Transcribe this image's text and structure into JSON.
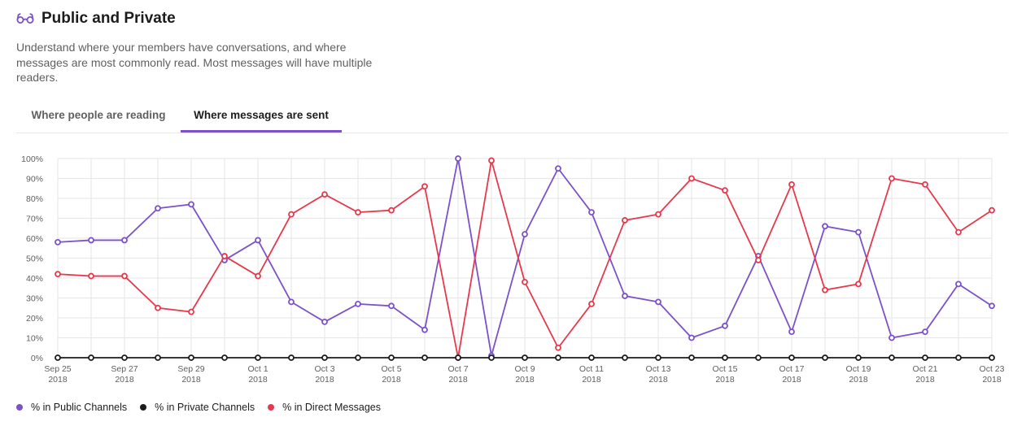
{
  "header": {
    "title": "Public and Private",
    "icon": "glasses-icon",
    "description": "Understand where your members have conversations, and where messages are most commonly read. Most messages will have multiple readers."
  },
  "tabs": [
    {
      "label": "Where people are reading",
      "active": false
    },
    {
      "label": "Where messages are sent",
      "active": true
    }
  ],
  "colors": {
    "accent": "#7b52c9",
    "public": "#7b52c9",
    "private": "#1d1c1d",
    "direct": "#e8394c"
  },
  "chart_data": {
    "type": "line",
    "ylim": [
      0,
      100
    ],
    "y_ticks": [
      "0%",
      "10%",
      "20%",
      "30%",
      "40%",
      "50%",
      "60%",
      "70%",
      "80%",
      "90%",
      "100%"
    ],
    "x_tick_labels": [
      {
        "day": "Sep 25",
        "year": "2018"
      },
      {
        "day": "Sep 27",
        "year": "2018"
      },
      {
        "day": "Sep 29",
        "year": "2018"
      },
      {
        "day": "Oct 1",
        "year": "2018"
      },
      {
        "day": "Oct 3",
        "year": "2018"
      },
      {
        "day": "Oct 5",
        "year": "2018"
      },
      {
        "day": "Oct 7",
        "year": "2018"
      },
      {
        "day": "Oct 9",
        "year": "2018"
      },
      {
        "day": "Oct 11",
        "year": "2018"
      },
      {
        "day": "Oct 13",
        "year": "2018"
      },
      {
        "day": "Oct 15",
        "year": "2018"
      },
      {
        "day": "Oct 17",
        "year": "2018"
      },
      {
        "day": "Oct 19",
        "year": "2018"
      },
      {
        "day": "Oct 21",
        "year": "2018"
      },
      {
        "day": "Oct 23",
        "year": "2018"
      }
    ],
    "x": [
      "Sep 25",
      "Sep 26",
      "Sep 27",
      "Sep 28",
      "Sep 29",
      "Sep 30",
      "Oct 1",
      "Oct 2",
      "Oct 3",
      "Oct 4",
      "Oct 5",
      "Oct 6",
      "Oct 7",
      "Oct 8",
      "Oct 9",
      "Oct 10",
      "Oct 11",
      "Oct 12",
      "Oct 13",
      "Oct 14",
      "Oct 15",
      "Oct 16",
      "Oct 17",
      "Oct 18",
      "Oct 19",
      "Oct 20",
      "Oct 21",
      "Oct 22",
      "Oct 23"
    ],
    "series": [
      {
        "name": "% in Public Channels",
        "color": "#7b52c9",
        "values": [
          58,
          59,
          59,
          75,
          77,
          49,
          59,
          28,
          18,
          27,
          26,
          14,
          100,
          1,
          62,
          95,
          73,
          31,
          28,
          10,
          16,
          51,
          13,
          66,
          63,
          10,
          13,
          37,
          26
        ]
      },
      {
        "name": "% in Private Channels",
        "color": "#1d1c1d",
        "values": [
          0,
          0,
          0,
          0,
          0,
          0,
          0,
          0,
          0,
          0,
          0,
          0,
          0,
          0,
          0,
          0,
          0,
          0,
          0,
          0,
          0,
          0,
          0,
          0,
          0,
          0,
          0,
          0,
          0
        ]
      },
      {
        "name": "% in Direct Messages",
        "color": "#e8394c",
        "values": [
          42,
          41,
          41,
          25,
          23,
          51,
          41,
          72,
          82,
          73,
          74,
          86,
          0,
          99,
          38,
          5,
          27,
          69,
          72,
          90,
          84,
          49,
          87,
          34,
          37,
          90,
          87,
          63,
          74
        ]
      }
    ]
  }
}
